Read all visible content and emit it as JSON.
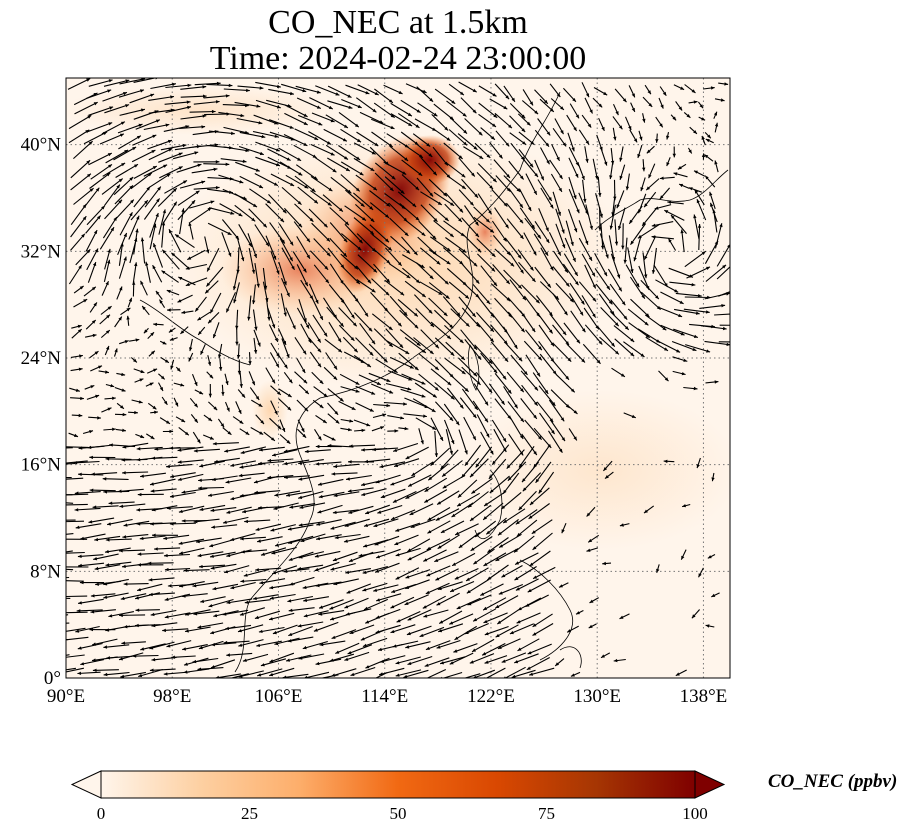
{
  "title_line1": "CO_NEC at 1.5km",
  "title_line2": "Time: 2024-02-24 23:00:00",
  "map": {
    "lon_range": [
      90,
      140
    ],
    "lat_range": [
      0,
      45
    ],
    "lon_ticks": [
      {
        "value": 90,
        "label": "90°E"
      },
      {
        "value": 98,
        "label": "98°E"
      },
      {
        "value": 106,
        "label": "106°E"
      },
      {
        "value": 114,
        "label": "114°E"
      },
      {
        "value": 122,
        "label": "122°E"
      },
      {
        "value": 130,
        "label": "130°E"
      },
      {
        "value": 138,
        "label": "138°E"
      }
    ],
    "lat_ticks": [
      {
        "value": 0,
        "label": "0°"
      },
      {
        "value": 8,
        "label": "8°N"
      },
      {
        "value": 16,
        "label": "16°N"
      },
      {
        "value": 24,
        "label": "24°N"
      },
      {
        "value": 32,
        "label": "32°N"
      },
      {
        "value": 40,
        "label": "40°N"
      }
    ],
    "gridlines": "dotted",
    "field": "CO_NEC concentration with wind vectors"
  },
  "colorbar": {
    "label": "CO_NEC (ppbv)",
    "min": 0,
    "max": 100,
    "extend": "both",
    "colors": [
      "#fff5eb",
      "#fdd0a2",
      "#fdae6b",
      "#f16913",
      "#d94801",
      "#a63603",
      "#7f0000"
    ],
    "ticks": [
      {
        "value": 0,
        "label": "0"
      },
      {
        "value": 25,
        "label": "25"
      },
      {
        "value": 50,
        "label": "50"
      },
      {
        "value": 75,
        "label": "75"
      },
      {
        "value": 100,
        "label": "100"
      }
    ]
  }
}
